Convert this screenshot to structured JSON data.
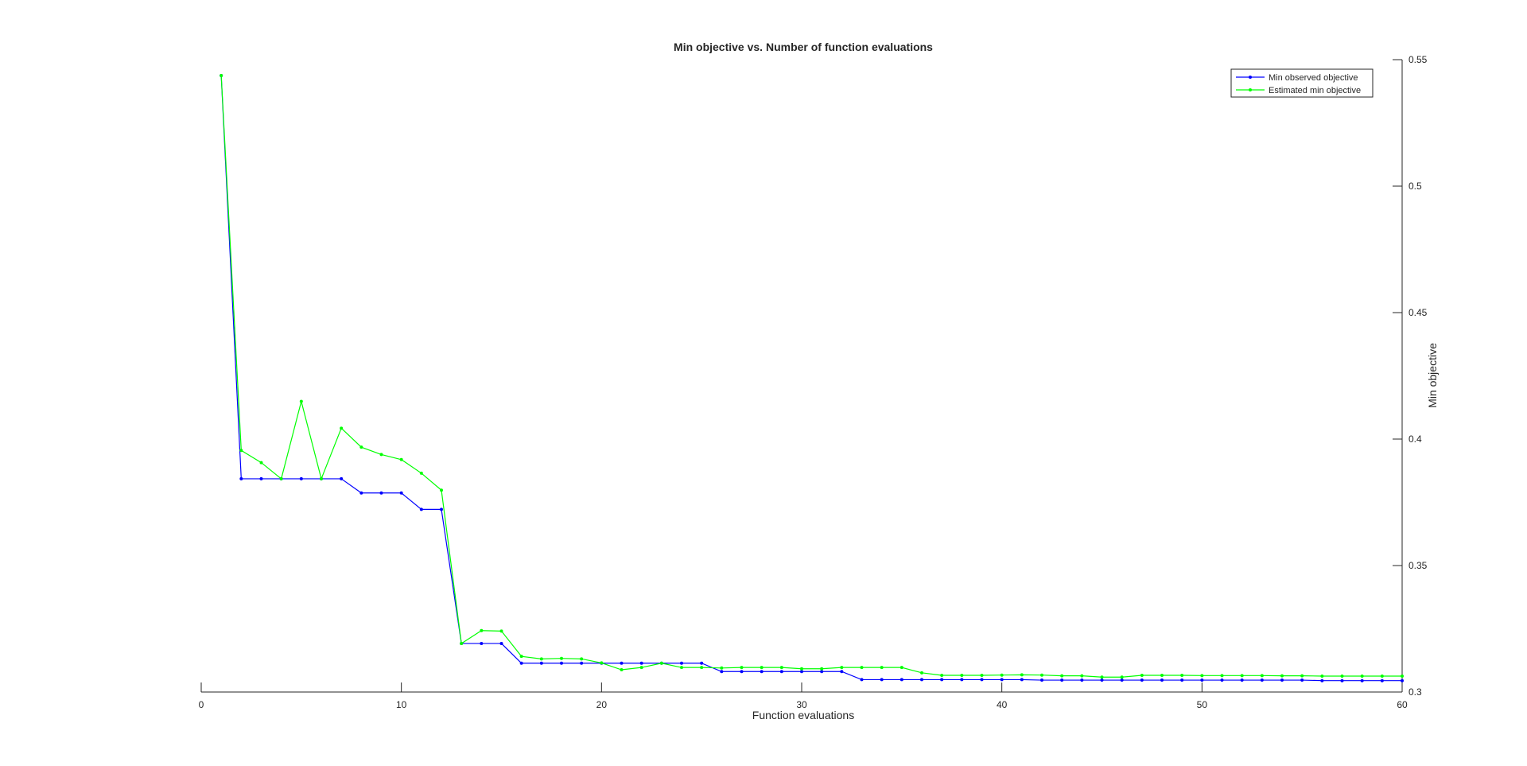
{
  "chart_data": {
    "type": "line",
    "title": "Min objective vs. Number of function evaluations",
    "xlabel": "Function evaluations",
    "ylabel": "Min objective",
    "xlim": [
      0,
      60
    ],
    "ylim": [
      0.3,
      0.55
    ],
    "x_ticks": [
      "0",
      "10",
      "20",
      "30",
      "40",
      "50",
      "60"
    ],
    "y_ticks": [
      "0.3",
      "0.35",
      "0.4",
      "0.45",
      "0.5",
      "0.55"
    ],
    "y_axis_side": "right",
    "grid": false,
    "legend_position": "top-right",
    "x": [
      1,
      2,
      3,
      4,
      5,
      6,
      7,
      8,
      9,
      10,
      11,
      12,
      13,
      14,
      15,
      16,
      17,
      18,
      19,
      20,
      21,
      22,
      23,
      24,
      25,
      26,
      27,
      28,
      29,
      30,
      31,
      32,
      33,
      34,
      35,
      36,
      37,
      38,
      39,
      40,
      41,
      42,
      43,
      44,
      45,
      46,
      47,
      48,
      49,
      50,
      51,
      52,
      53,
      54,
      55,
      56,
      57,
      58,
      59,
      60
    ],
    "series": [
      {
        "name": "Min observed objective",
        "color": "#0000ff",
        "marker": "dot",
        "values": [
          0.5437,
          0.3843,
          0.3843,
          0.3843,
          0.3843,
          0.3843,
          0.3843,
          0.3787,
          0.3787,
          0.3787,
          0.3722,
          0.3722,
          0.3192,
          0.3192,
          0.3192,
          0.3114,
          0.3114,
          0.3114,
          0.3114,
          0.3114,
          0.3114,
          0.3114,
          0.3114,
          0.3114,
          0.3114,
          0.3081,
          0.3081,
          0.3081,
          0.3081,
          0.3081,
          0.3081,
          0.3081,
          0.3049,
          0.3049,
          0.3049,
          0.3049,
          0.3049,
          0.3049,
          0.3049,
          0.3049,
          0.3049,
          0.3047,
          0.3047,
          0.3047,
          0.3047,
          0.3047,
          0.3047,
          0.3047,
          0.3047,
          0.3047,
          0.3047,
          0.3047,
          0.3047,
          0.3047,
          0.3047,
          0.3045,
          0.3045,
          0.3045,
          0.3045,
          0.3045
        ]
      },
      {
        "name": "Estimated min objective",
        "color": "#00ff00",
        "marker": "dot",
        "values": [
          0.5437,
          0.3955,
          0.3907,
          0.3843,
          0.4149,
          0.3843,
          0.4043,
          0.3968,
          0.3939,
          0.3919,
          0.3865,
          0.3798,
          0.3192,
          0.3243,
          0.3241,
          0.3141,
          0.3131,
          0.3133,
          0.3131,
          0.3115,
          0.3088,
          0.3097,
          0.3114,
          0.3097,
          0.3097,
          0.3095,
          0.3097,
          0.3097,
          0.3097,
          0.3092,
          0.3092,
          0.3097,
          0.3097,
          0.3097,
          0.3097,
          0.3076,
          0.3066,
          0.3066,
          0.3066,
          0.3067,
          0.3068,
          0.3067,
          0.3064,
          0.3064,
          0.3059,
          0.3059,
          0.3066,
          0.3066,
          0.3066,
          0.3065,
          0.3065,
          0.3065,
          0.3065,
          0.3064,
          0.3064,
          0.3063,
          0.3063,
          0.3063,
          0.3063,
          0.3063
        ]
      }
    ]
  }
}
